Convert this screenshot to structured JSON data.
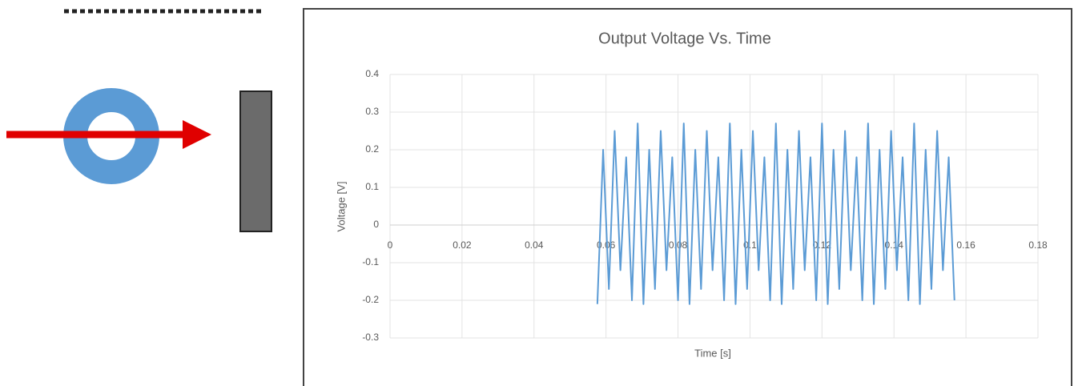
{
  "chart_data": {
    "type": "line",
    "title": "Output Voltage Vs. Time",
    "x_label": "Time [s]",
    "y_label": "Voltage [V]",
    "x": [
      0.0576,
      0.0592,
      0.0608,
      0.0624,
      0.064,
      0.0656,
      0.0672,
      0.0688,
      0.0704,
      0.072,
      0.0736,
      0.0752,
      0.0768,
      0.0784,
      0.08,
      0.0816,
      0.0832,
      0.0848,
      0.0864,
      0.088,
      0.0896,
      0.0912,
      0.0928,
      0.0944,
      0.096,
      0.0976,
      0.0992,
      0.1008,
      0.1024,
      0.104,
      0.1056,
      0.1072,
      0.1088,
      0.1104,
      0.112,
      0.1136,
      0.1152,
      0.1168,
      0.1184,
      0.12,
      0.1216,
      0.1232,
      0.1248,
      0.1264,
      0.128,
      0.1296,
      0.1312,
      0.1328,
      0.1344,
      0.136,
      0.1376,
      0.1392,
      0.1408,
      0.1424,
      0.144,
      0.1456,
      0.1472,
      0.1488,
      0.1504,
      0.152,
      0.1536,
      0.1552,
      0.1568
    ],
    "values": [
      -0.21,
      0.2,
      -0.17,
      0.25,
      -0.12,
      0.18,
      -0.2,
      0.27,
      -0.21,
      0.2,
      -0.17,
      0.25,
      -0.12,
      0.18,
      -0.2,
      0.27,
      -0.21,
      0.2,
      -0.17,
      0.25,
      -0.12,
      0.18,
      -0.2,
      0.27,
      -0.21,
      0.2,
      -0.17,
      0.25,
      -0.12,
      0.18,
      -0.2,
      0.27,
      -0.21,
      0.2,
      -0.17,
      0.25,
      -0.12,
      0.18,
      -0.2,
      0.27,
      -0.21,
      0.2,
      -0.17,
      0.25,
      -0.12,
      0.18,
      -0.2,
      0.27,
      -0.21,
      0.2,
      -0.17,
      0.25,
      -0.12,
      0.18,
      -0.2,
      0.27,
      -0.21,
      0.2,
      -0.17,
      0.25,
      -0.12,
      0.18,
      -0.2
    ],
    "color": "#5b9bd5",
    "xlim": [
      0,
      0.18
    ],
    "xticks": [
      0,
      0.02,
      0.04,
      0.06,
      0.08,
      0.1,
      0.12,
      0.14,
      0.16,
      0.18
    ],
    "ylim": [
      -0.3,
      0.4
    ],
    "yticks": [
      -0.3,
      -0.2,
      -0.1,
      0,
      0.1,
      0.2,
      0.3,
      0.4
    ],
    "grid": true
  }
}
